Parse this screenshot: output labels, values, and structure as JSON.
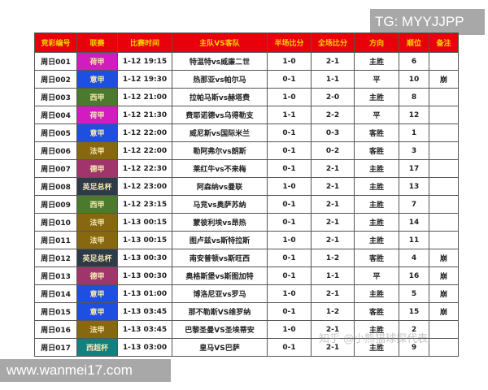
{
  "watermark_tg": "TG: MYYJJPP",
  "watermark_site": "www.wanmei17.com",
  "watermark_zhihu": "知乎 @小熊猫球探代表",
  "colors": {
    "header_bg": "#e8000a",
    "header_text": "#f5d400"
  },
  "league_colors": {
    "荷甲": "#d21cbf",
    "意甲": "#1f4fe0",
    "西甲": "#4b7a2f",
    "法甲": "#876811",
    "德甲": "#a0356b",
    "英足总杯": "#2d3a48",
    "西超杯": "#118080"
  },
  "table": {
    "headers": [
      "竞彩编号",
      "联赛",
      "比赛时间",
      "主队VS客队",
      "半场比分",
      "全场比分",
      "方向",
      "顺位",
      "备注"
    ],
    "rows": [
      [
        "周日001",
        "荷甲",
        "1-12 19:15",
        "特温特vs威廉二世",
        "1-0",
        "2-1",
        "主胜",
        "6",
        ""
      ],
      [
        "周日002",
        "意甲",
        "1-12 19:30",
        "热那亚vs帕尔马",
        "0-1",
        "1-1",
        "平",
        "10",
        "崩"
      ],
      [
        "周日003",
        "西甲",
        "1-12 21:00",
        "拉帕马斯vs赫塔费",
        "1-0",
        "2-0",
        "主胜",
        "8",
        ""
      ],
      [
        "周日004",
        "荷甲",
        "1-12 21:30",
        "费耶诺德vs乌得勒支",
        "1-1",
        "2-2",
        "平",
        "12",
        ""
      ],
      [
        "周日005",
        "意甲",
        "1-12 22:00",
        "威尼斯vs国际米兰",
        "0-1",
        "0-3",
        "客胜",
        "1",
        ""
      ],
      [
        "周日006",
        "法甲",
        "1-12 22:00",
        "勒阿弗尔vs朗斯",
        "0-1",
        "0-2",
        "客胜",
        "3",
        ""
      ],
      [
        "周日007",
        "德甲",
        "1-12 22:30",
        "莱红牛vs不来梅",
        "0-1",
        "2-1",
        "主胜",
        "17",
        ""
      ],
      [
        "周日008",
        "英足总杯",
        "1-12 23:00",
        "阿森纳vs曼联",
        "1-0",
        "2-1",
        "主胜",
        "13",
        ""
      ],
      [
        "周日009",
        "西甲",
        "1-12 23:15",
        "马竞vs奥萨苏纳",
        "0-1",
        "2-1",
        "主胜",
        "7",
        ""
      ],
      [
        "周日010",
        "法甲",
        "1-13 00:15",
        "蒙彼利埃vs昂热",
        "0-1",
        "2-1",
        "主胜",
        "14",
        ""
      ],
      [
        "周日011",
        "法甲",
        "1-13 00:15",
        "图卢兹vs斯特拉斯",
        "1-0",
        "2-1",
        "主胜",
        "11",
        ""
      ],
      [
        "周日012",
        "英足总杯",
        "1-13 00:30",
        "南安普顿vs斯旺西",
        "0-1",
        "1-2",
        "客胜",
        "4",
        "崩"
      ],
      [
        "周日013",
        "德甲",
        "1-13 00:30",
        "奥格斯堡vs斯图加特",
        "0-1",
        "1-1",
        "平",
        "16",
        "崩"
      ],
      [
        "周日014",
        "意甲",
        "1-13 01:00",
        "博洛尼亚vs罗马",
        "1-0",
        "2-1",
        "主胜",
        "5",
        "崩"
      ],
      [
        "周日015",
        "意甲",
        "1-13 03:45",
        "那不勒斯VS维罗纳",
        "0-1",
        "1-2",
        "客胜",
        "15",
        "崩"
      ],
      [
        "周日016",
        "法甲",
        "1-13 03:45",
        "巴黎圣曼VS圣埃蒂安",
        "1-0",
        "2-1",
        "主胜",
        "2",
        ""
      ],
      [
        "周日017",
        "西超杯",
        "1-13 03:00",
        "皇马VS巴萨",
        "0-1",
        "2-1",
        "主胜",
        "9",
        ""
      ]
    ]
  }
}
